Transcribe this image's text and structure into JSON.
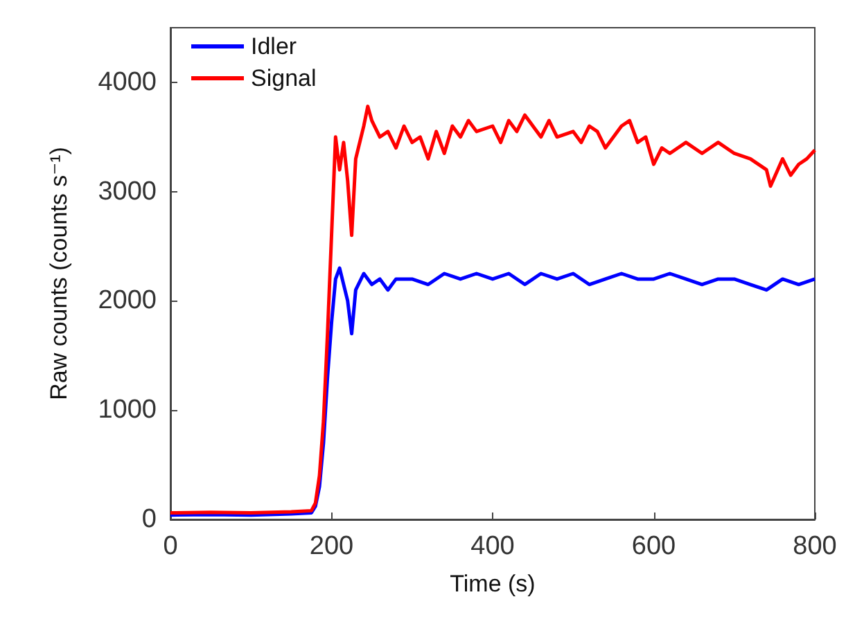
{
  "chart_data": {
    "type": "line",
    "xlabel": "Time (s)",
    "ylabel": "Raw counts (counts s⁻¹)",
    "xlim": [
      0,
      800
    ],
    "xticks": [
      0,
      200,
      400,
      600,
      800
    ],
    "ylim": [
      0,
      4500
    ],
    "yticks": [
      0,
      1000,
      2000,
      3000,
      4000
    ],
    "grid": false,
    "legend": "top left",
    "marker": "none",
    "line_style": "solid",
    "series": [
      {
        "name": "Idler",
        "color": "#0000ff",
        "x": [
          0,
          50,
          100,
          150,
          175,
          180,
          185,
          190,
          195,
          200,
          205,
          210,
          215,
          220,
          225,
          230,
          240,
          250,
          260,
          270,
          280,
          300,
          320,
          340,
          360,
          380,
          400,
          420,
          440,
          460,
          480,
          500,
          520,
          540,
          560,
          580,
          600,
          620,
          640,
          660,
          680,
          700,
          720,
          740,
          760,
          780,
          800
        ],
        "values": [
          40,
          45,
          40,
          50,
          60,
          120,
          300,
          700,
          1300,
          1800,
          2200,
          2300,
          2150,
          2000,
          1700,
          2100,
          2250,
          2150,
          2200,
          2100,
          2200,
          2200,
          2150,
          2250,
          2200,
          2250,
          2200,
          2250,
          2150,
          2250,
          2200,
          2250,
          2150,
          2200,
          2250,
          2200,
          2200,
          2250,
          2200,
          2150,
          2200,
          2200,
          2150,
          2100,
          2200,
          2150,
          2200
        ]
      },
      {
        "name": "Signal",
        "color": "#ff0000",
        "x": [
          0,
          50,
          100,
          150,
          175,
          180,
          185,
          190,
          195,
          200,
          205,
          210,
          215,
          220,
          225,
          230,
          235,
          240,
          245,
          250,
          260,
          270,
          280,
          290,
          300,
          310,
          320,
          330,
          340,
          350,
          360,
          370,
          380,
          400,
          410,
          420,
          430,
          440,
          450,
          460,
          470,
          480,
          500,
          510,
          520,
          530,
          540,
          550,
          560,
          570,
          580,
          590,
          600,
          610,
          620,
          640,
          660,
          680,
          700,
          720,
          740,
          745,
          760,
          770,
          780,
          790,
          800
        ],
        "values": [
          60,
          65,
          60,
          70,
          80,
          150,
          400,
          900,
          1700,
          2600,
          3500,
          3200,
          3450,
          3100,
          2600,
          3300,
          3450,
          3600,
          3780,
          3650,
          3500,
          3550,
          3400,
          3600,
          3450,
          3500,
          3300,
          3550,
          3350,
          3600,
          3500,
          3650,
          3550,
          3600,
          3450,
          3650,
          3550,
          3700,
          3600,
          3500,
          3650,
          3500,
          3550,
          3450,
          3600,
          3550,
          3400,
          3500,
          3600,
          3650,
          3450,
          3500,
          3250,
          3400,
          3350,
          3450,
          3350,
          3450,
          3350,
          3300,
          3200,
          3050,
          3300,
          3150,
          3250,
          3300,
          3380
        ]
      }
    ]
  }
}
